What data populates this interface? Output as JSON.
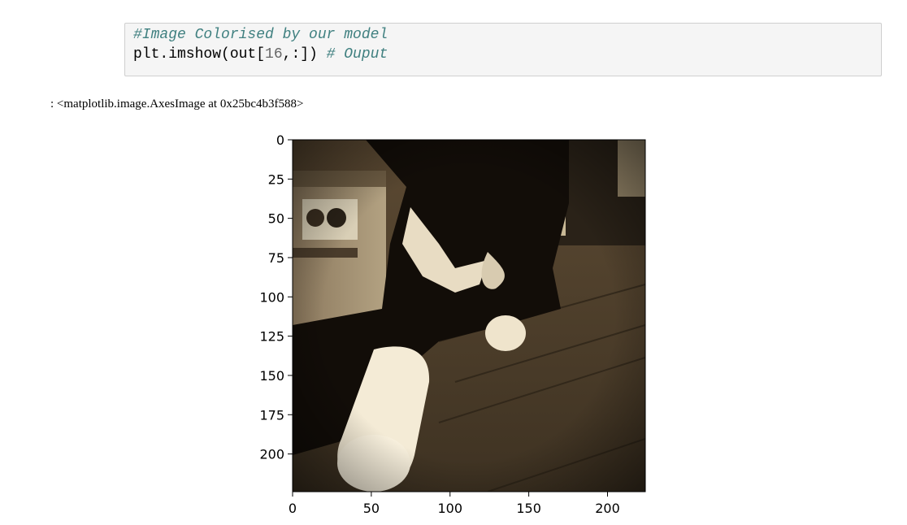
{
  "cell": {
    "code_lines": [
      {
        "comment": "#Image Colorised by our model"
      },
      {
        "pre": "plt.imshow(out[",
        "num": "16",
        "post": ",:]) ",
        "comment": "# Ouput"
      }
    ]
  },
  "output": {
    "text": ": <matplotlib.image.AxesImage at 0x25bc4b3f588>"
  },
  "chart_data": {
    "type": "image",
    "xticks": [
      0,
      50,
      100,
      150,
      200
    ],
    "yticks": [
      0,
      25,
      50,
      75,
      100,
      125,
      150,
      175,
      200
    ],
    "xlim": [
      0,
      224
    ],
    "ylim": [
      224,
      0
    ],
    "tone": "sepia"
  }
}
